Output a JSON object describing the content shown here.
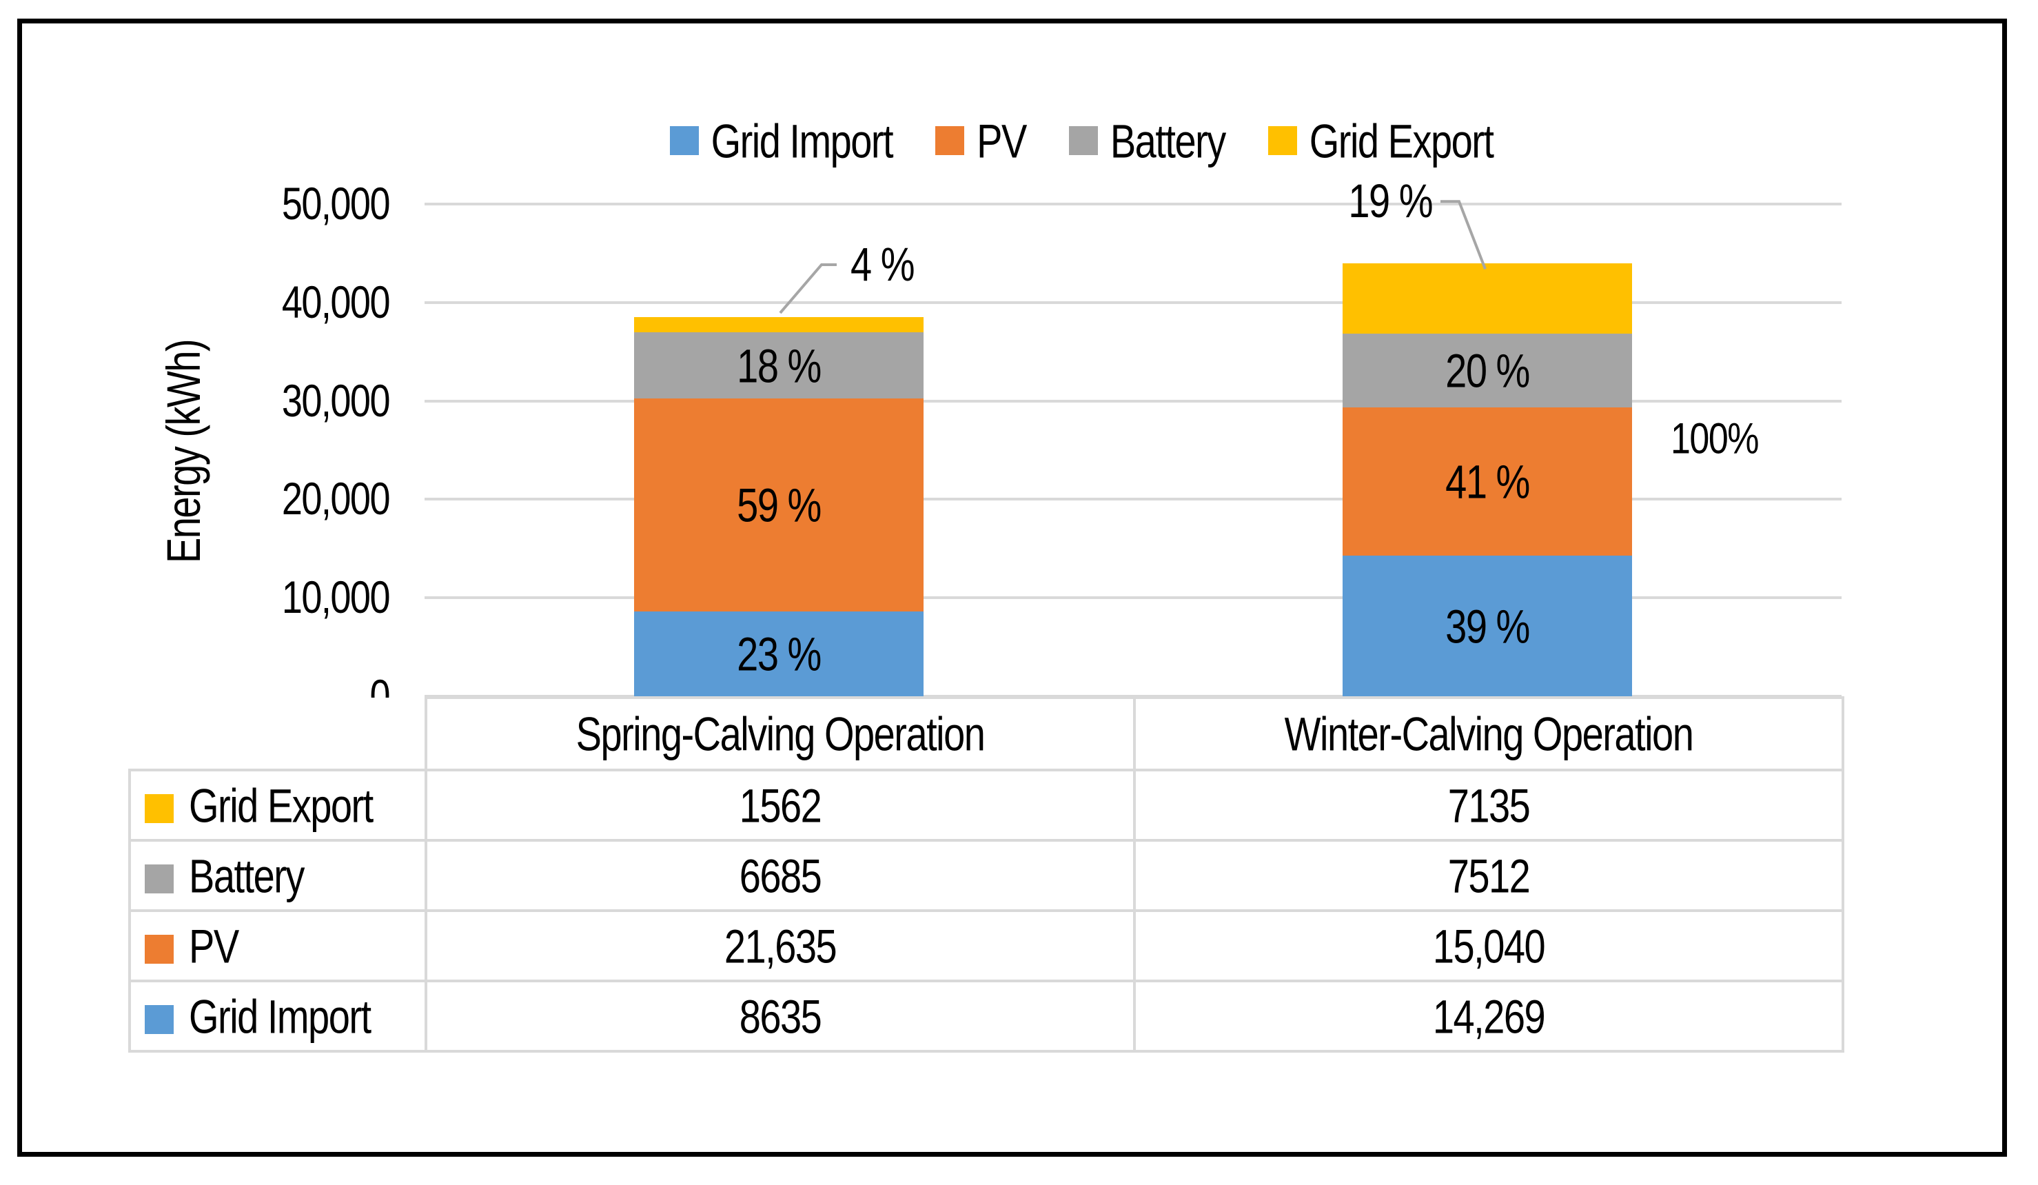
{
  "colors": {
    "grid_import": "#5B9BD5",
    "pv": "#ED7D31",
    "battery": "#A5A5A5",
    "grid_export": "#FFC000",
    "gridline": "#D9D9D9",
    "table_border": "#D9D9D9",
    "callout_line": "#A6A6A6",
    "text": "#000000",
    "frame_border": "#000000"
  },
  "chart_data": {
    "type": "bar",
    "stacked": true,
    "title": "",
    "ylabel": "Energy (kWh)",
    "xlabel": "",
    "ylim": [
      0,
      50000
    ],
    "ytick_step": 10000,
    "ytick_labels": [
      "0",
      "10,000",
      "20,000",
      "30,000",
      "40,000",
      "50,000"
    ],
    "grid": true,
    "legend_position": "top",
    "categories": [
      "Spring-Calving Operation",
      "Winter-Calving Operation"
    ],
    "series": [
      {
        "name": "Grid Import",
        "color": "#5B9BD5",
        "values": [
          8635,
          14269
        ],
        "labels": [
          "23 %",
          "39 %"
        ],
        "label_outside": false
      },
      {
        "name": "PV",
        "color": "#ED7D31",
        "values": [
          21635,
          15040
        ],
        "labels": [
          "59 %",
          "41 %"
        ],
        "label_outside": false
      },
      {
        "name": "Battery",
        "color": "#A5A5A5",
        "values": [
          6685,
          7512
        ],
        "labels": [
          "18 %",
          "20 %"
        ],
        "label_outside": false
      },
      {
        "name": "Grid Export",
        "color": "#FFC000",
        "values": [
          1562,
          7135
        ],
        "labels": [
          "4 %",
          "19 %"
        ],
        "label_outside": true
      }
    ],
    "annotation_right": "100%"
  },
  "table": {
    "col_headers": [
      "Spring-Calving Operation",
      "Winter-Calving Operation"
    ],
    "rows": [
      {
        "label": "Grid Export",
        "color": "#FFC000",
        "values": [
          "1562",
          "7135"
        ]
      },
      {
        "label": "Battery",
        "color": "#A5A5A5",
        "values": [
          "6685",
          "7512"
        ]
      },
      {
        "label": "PV",
        "color": "#ED7D31",
        "values": [
          "21,635",
          "15,040"
        ]
      },
      {
        "label": "Grid Import",
        "color": "#5B9BD5",
        "values": [
          "8635",
          "14,269"
        ]
      }
    ]
  }
}
